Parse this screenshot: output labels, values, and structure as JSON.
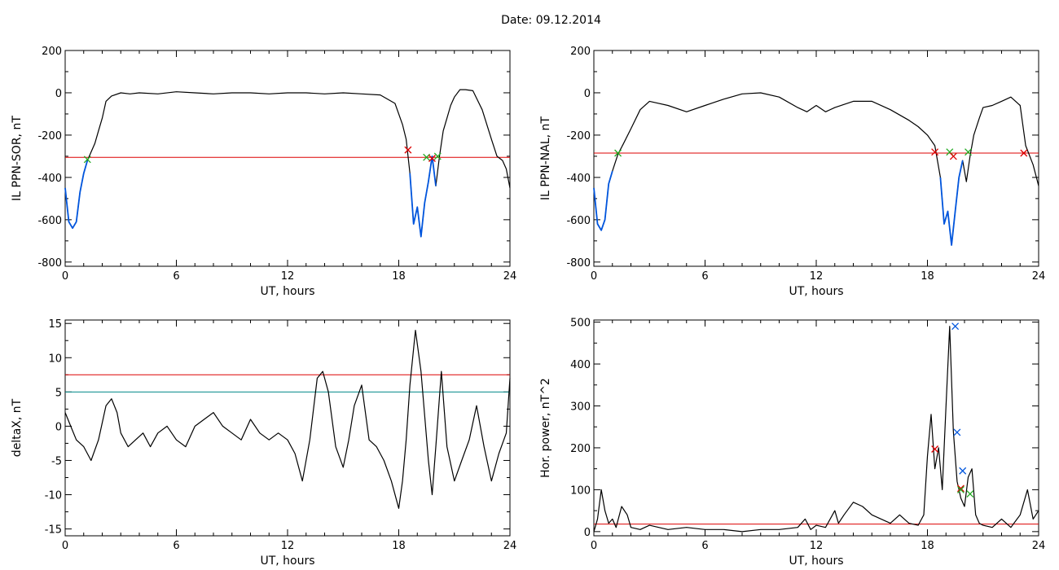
{
  "title": "Date:  09.12.2014",
  "chart_data": [
    {
      "type": "line",
      "xlabel": "UT, hours",
      "ylabel": "IL PPN-SOR, nT",
      "xlim": [
        0,
        24
      ],
      "ylim": [
        -820,
        200
      ],
      "xticks": [
        0,
        6,
        12,
        18,
        24
      ],
      "yticks": [
        200,
        0,
        -200,
        -400,
        -600,
        -800
      ],
      "series": [
        {
          "color": "#000000",
          "x": [
            0,
            0.2,
            0.4,
            0.6,
            0.8,
            1.0,
            1.2,
            1.4,
            1.6,
            1.8,
            2.0,
            2.2,
            2.5,
            3,
            3.5,
            4,
            5,
            6,
            7,
            8,
            9,
            10,
            11,
            12,
            13,
            14,
            15,
            16,
            17,
            17.8,
            18.2,
            18.4,
            18.6,
            18.8,
            19.0,
            19.2,
            19.4,
            19.6,
            19.8,
            20.0,
            20.2,
            20.4,
            20.6,
            20.8,
            21.0,
            21.3,
            21.6,
            22,
            22.5,
            23,
            23.3,
            23.6,
            23.8,
            24
          ],
          "y": [
            -450,
            -610,
            -640,
            -610,
            -470,
            -380,
            -320,
            -280,
            -240,
            -180,
            -120,
            -40,
            -15,
            0,
            -5,
            0,
            -5,
            5,
            0,
            -5,
            0,
            0,
            -5,
            0,
            0,
            -5,
            0,
            -5,
            -10,
            -50,
            -150,
            -220,
            -380,
            -620,
            -540,
            -680,
            -520,
            -420,
            -300,
            -440,
            -300,
            -180,
            -120,
            -60,
            -20,
            15,
            15,
            10,
            -80,
            -220,
            -300,
            -320,
            -360,
            -450
          ]
        },
        {
          "color": "#0055dd",
          "x": [
            0,
            0.2,
            0.4,
            0.6,
            0.8,
            1.0,
            1.2
          ],
          "y": [
            -450,
            -610,
            -640,
            -610,
            -470,
            -380,
            -320
          ]
        },
        {
          "color": "#0055dd",
          "x": [
            18.6,
            18.8,
            19.0,
            19.2,
            19.4,
            19.6,
            19.8,
            20.0
          ],
          "y": [
            -380,
            -620,
            -540,
            -680,
            -520,
            -420,
            -300,
            -440
          ]
        }
      ],
      "hlines": [
        {
          "y": -305,
          "color": "#dd0000"
        }
      ],
      "markers": [
        {
          "x": 1.2,
          "y": -315,
          "color": "#22aa22"
        },
        {
          "x": 18.5,
          "y": -270,
          "color": "#dd0000"
        },
        {
          "x": 19.5,
          "y": -305,
          "color": "#22aa22"
        },
        {
          "x": 19.8,
          "y": -310,
          "color": "#dd0000"
        },
        {
          "x": 20.1,
          "y": -300,
          "color": "#22aa22"
        }
      ]
    },
    {
      "type": "line",
      "xlabel": "UT, hours",
      "ylabel": "IL PPN-NAL, nT",
      "xlim": [
        0,
        24
      ],
      "ylim": [
        -820,
        200
      ],
      "xticks": [
        0,
        6,
        12,
        18,
        24
      ],
      "yticks": [
        200,
        0,
        -200,
        -400,
        -600,
        -800
      ],
      "series": [
        {
          "color": "#000000",
          "x": [
            0,
            0.2,
            0.4,
            0.6,
            0.8,
            1.0,
            1.3,
            1.6,
            2,
            2.5,
            3,
            4,
            5,
            6,
            7,
            8,
            9,
            10,
            11,
            11.5,
            12,
            12.5,
            13,
            14,
            15,
            16,
            17,
            17.5,
            18,
            18.4,
            18.7,
            18.9,
            19.1,
            19.3,
            19.5,
            19.7,
            19.9,
            20.1,
            20.3,
            20.5,
            20.8,
            21,
            21.5,
            22,
            22.5,
            23,
            23.3,
            23.7,
            24
          ],
          "y": [
            -450,
            -620,
            -650,
            -600,
            -430,
            -370,
            -290,
            -240,
            -170,
            -80,
            -40,
            -60,
            -90,
            -60,
            -30,
            -5,
            0,
            -20,
            -70,
            -90,
            -60,
            -90,
            -70,
            -40,
            -40,
            -80,
            -130,
            -160,
            -200,
            -250,
            -400,
            -620,
            -560,
            -720,
            -560,
            -400,
            -320,
            -420,
            -300,
            -200,
            -120,
            -70,
            -60,
            -40,
            -20,
            -60,
            -250,
            -340,
            -440
          ]
        },
        {
          "color": "#0055dd",
          "x": [
            0,
            0.2,
            0.4,
            0.6,
            0.8,
            1.0
          ],
          "y": [
            -450,
            -620,
            -650,
            -600,
            -430,
            -370
          ]
        },
        {
          "color": "#0055dd",
          "x": [
            18.7,
            18.9,
            19.1,
            19.3,
            19.5,
            19.7,
            19.9
          ],
          "y": [
            -400,
            -620,
            -560,
            -720,
            -560,
            -400,
            -320
          ]
        }
      ],
      "hlines": [
        {
          "y": -285,
          "color": "#dd0000"
        }
      ],
      "markers": [
        {
          "x": 1.3,
          "y": -285,
          "color": "#22aa22"
        },
        {
          "x": 18.4,
          "y": -280,
          "color": "#dd0000"
        },
        {
          "x": 19.2,
          "y": -280,
          "color": "#22aa22"
        },
        {
          "x": 19.4,
          "y": -300,
          "color": "#dd0000"
        },
        {
          "x": 20.2,
          "y": -280,
          "color": "#22aa22"
        },
        {
          "x": 23.2,
          "y": -285,
          "color": "#dd0000"
        }
      ]
    },
    {
      "type": "line",
      "xlabel": "UT, hours",
      "ylabel": "deltaX, nT",
      "xlim": [
        0,
        24
      ],
      "ylim": [
        -16,
        15.5
      ],
      "xticks": [
        0,
        6,
        12,
        18,
        24
      ],
      "yticks": [
        15,
        10,
        5,
        0,
        -5,
        -10,
        -15
      ],
      "series": [
        {
          "color": "#000000",
          "x": [
            0,
            0.3,
            0.6,
            1.0,
            1.4,
            1.8,
            2.2,
            2.5,
            2.8,
            3.0,
            3.4,
            3.8,
            4.2,
            4.6,
            5,
            5.5,
            6,
            6.5,
            7,
            7.5,
            8,
            8.5,
            9,
            9.5,
            10,
            10.5,
            11,
            11.5,
            12,
            12.4,
            12.8,
            13.2,
            13.6,
            13.9,
            14.2,
            14.6,
            15,
            15.3,
            15.6,
            16,
            16.4,
            16.8,
            17.2,
            17.6,
            18.0,
            18.2,
            18.4,
            18.6,
            18.9,
            19.2,
            19.6,
            19.8,
            20.0,
            20.3,
            20.6,
            21.0,
            21.4,
            21.8,
            22.2,
            22.6,
            23.0,
            23.4,
            23.8,
            24.0
          ],
          "y": [
            2,
            0,
            -2,
            -3,
            -5,
            -2,
            3,
            4,
            2,
            -1,
            -3,
            -2,
            -1,
            -3,
            -1,
            0,
            -2,
            -3,
            0,
            1,
            2,
            0,
            -1,
            -2,
            1,
            -1,
            -2,
            -1,
            -2,
            -4,
            -8,
            -2,
            7,
            8,
            5,
            -3,
            -6,
            -2,
            3,
            6,
            -2,
            -3,
            -5,
            -8,
            -12,
            -8,
            -2,
            6,
            14,
            8,
            -5,
            -10,
            -3,
            8,
            -3,
            -8,
            -5,
            -2,
            3,
            -3,
            -8,
            -4,
            -1,
            7
          ]
        }
      ],
      "hlines": [
        {
          "y": 7.5,
          "color": "#dd0000"
        },
        {
          "y": 5,
          "color": "#008888"
        }
      ],
      "markers": []
    },
    {
      "type": "line",
      "xlabel": "UT, hours",
      "ylabel": "Hor. power, nT^2",
      "xlim": [
        0,
        24
      ],
      "ylim": [
        -10,
        505
      ],
      "xticks": [
        0,
        6,
        12,
        18,
        24
      ],
      "yticks": [
        500,
        400,
        300,
        200,
        100,
        0
      ],
      "series": [
        {
          "color": "#000000",
          "x": [
            0,
            0.2,
            0.4,
            0.6,
            0.8,
            1.0,
            1.2,
            1.5,
            1.8,
            2.0,
            2.5,
            3,
            4,
            5,
            6,
            7,
            8,
            9,
            10,
            11,
            11.4,
            11.7,
            12,
            12.5,
            13,
            13.2,
            13.5,
            14,
            14.5,
            15,
            15.5,
            16,
            16.5,
            17,
            17.5,
            17.8,
            18.0,
            18.2,
            18.4,
            18.6,
            18.8,
            19.0,
            19.2,
            19.4,
            19.6,
            19.8,
            20.0,
            20.2,
            20.4,
            20.6,
            20.8,
            21,
            21.5,
            22,
            22.5,
            23,
            23.4,
            23.7,
            24
          ],
          "y": [
            0,
            30,
            100,
            50,
            20,
            30,
            10,
            60,
            40,
            10,
            5,
            15,
            5,
            10,
            5,
            5,
            0,
            5,
            5,
            10,
            30,
            5,
            15,
            10,
            50,
            20,
            40,
            70,
            60,
            40,
            30,
            20,
            40,
            20,
            15,
            40,
            180,
            280,
            150,
            200,
            100,
            300,
            490,
            240,
            120,
            80,
            60,
            130,
            150,
            40,
            20,
            15,
            10,
            30,
            10,
            40,
            100,
            30,
            50
          ]
        }
      ],
      "hlines": [
        {
          "y": 18,
          "color": "#dd0000"
        }
      ],
      "markers": [
        {
          "x": 18.4,
          "y": 197,
          "color": "#dd0000"
        },
        {
          "x": 19.5,
          "y": 490,
          "color": "#0055dd"
        },
        {
          "x": 19.6,
          "y": 237,
          "color": "#0055dd"
        },
        {
          "x": 19.9,
          "y": 145,
          "color": "#0055dd"
        },
        {
          "x": 19.8,
          "y": 103,
          "color": "#dd0000"
        },
        {
          "x": 19.8,
          "y": 100,
          "color": "#22aa22"
        },
        {
          "x": 20.3,
          "y": 90,
          "color": "#22aa22"
        }
      ]
    }
  ]
}
